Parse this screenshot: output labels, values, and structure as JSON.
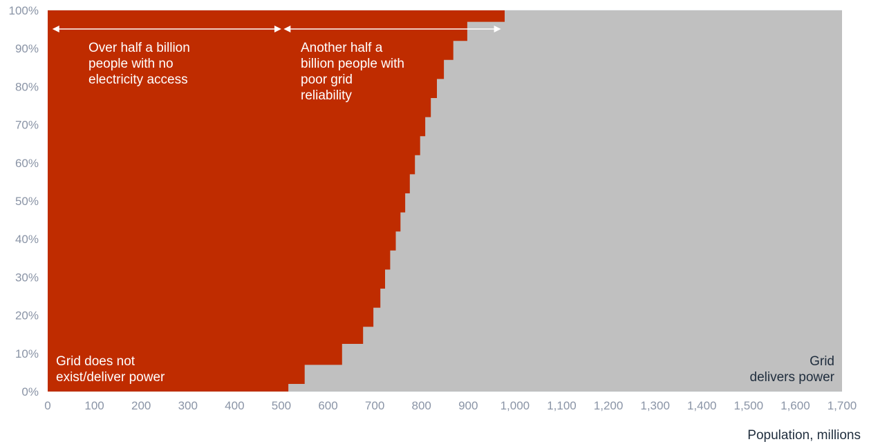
{
  "chart_data": {
    "type": "area",
    "xlabel": "Population, millions",
    "ylabel": "",
    "xlim": [
      0,
      1700
    ],
    "ylim": [
      0,
      100
    ],
    "x_ticks": [
      "0",
      "100",
      "200",
      "300",
      "400",
      "500",
      "600",
      "700",
      "800",
      "900",
      "1,000",
      "1,100",
      "1,200",
      "1,300",
      "1,400",
      "1,500",
      "1,600",
      "1,700"
    ],
    "y_ticks": [
      "0%",
      "10%",
      "20%",
      "30%",
      "40%",
      "50%",
      "60%",
      "70%",
      "80%",
      "90%",
      "100%"
    ],
    "grid": true,
    "series": [
      {
        "color": "#bf2c00",
        "x": [
          515,
          550,
          630,
          675,
          697,
          712,
          722,
          733,
          745,
          755,
          765,
          775,
          786,
          797,
          808,
          820,
          833,
          848,
          868,
          898,
          978
        ],
        "y": [
          0,
          2,
          7,
          12.5,
          17,
          22,
          27,
          32,
          37,
          42,
          47,
          52,
          57,
          62,
          67,
          72,
          77,
          82,
          87,
          92,
          97
        ]
      },
      {
        "color": "#c0c0c0",
        "x": [
          515,
          1700
        ],
        "y": [
          0,
          100
        ]
      }
    ],
    "annotations": [
      {
        "lines": [
          "Over half a billion",
          "people with no",
          "electricity access"
        ]
      },
      {
        "lines": [
          "Another half a",
          "billion people with",
          "poor grid",
          "reliability"
        ]
      },
      {
        "lines": [
          "Grid does not",
          "exist/deliver power"
        ]
      },
      {
        "lines": [
          "Grid",
          "delivers power"
        ]
      }
    ]
  }
}
